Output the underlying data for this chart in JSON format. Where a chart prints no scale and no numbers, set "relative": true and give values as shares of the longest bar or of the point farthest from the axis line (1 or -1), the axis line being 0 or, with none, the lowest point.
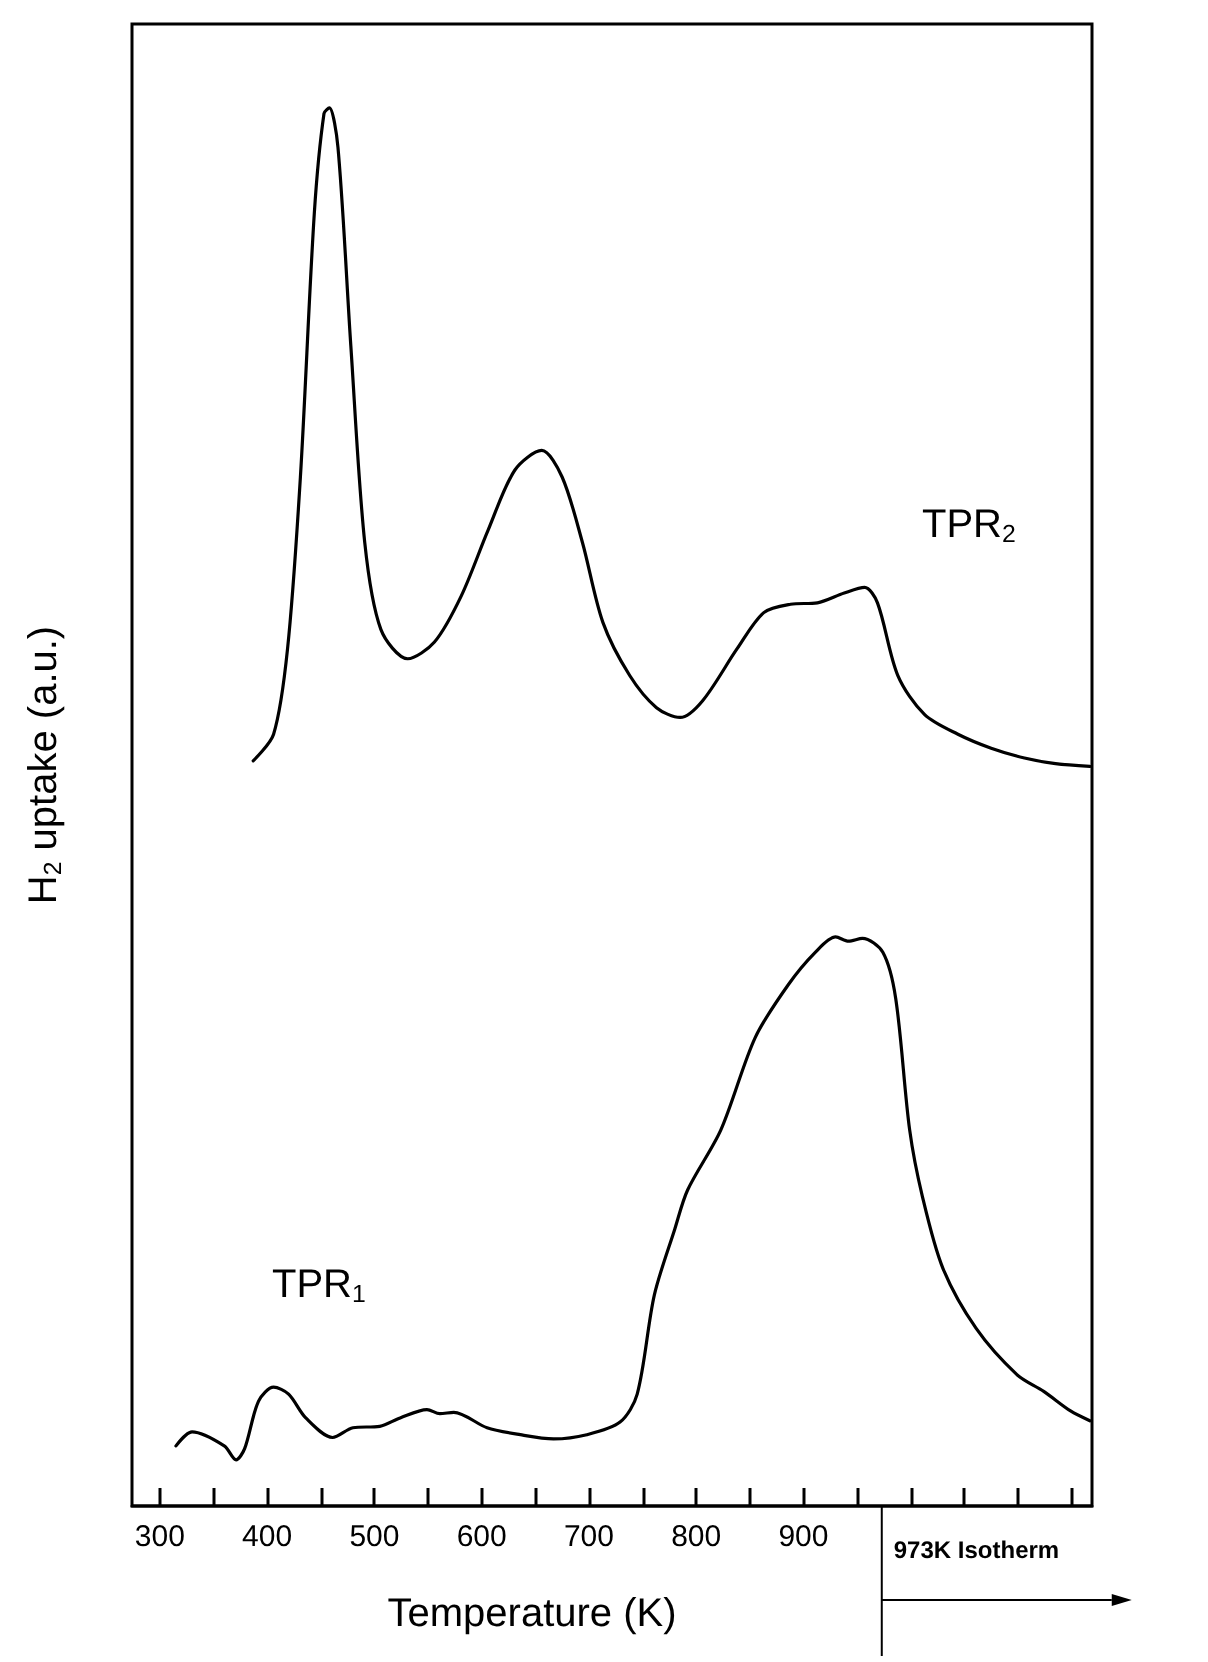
{
  "chart_data": {
    "type": "line",
    "xlabel": "Temperature (K)",
    "ylabel": "H$_{2}$ uptake (a.u.)",
    "relative": true,
    "xlim": [
      274,
      1169
    ],
    "xticks": [
      300,
      {
        "value": 350,
        "label": null
      },
      400,
      {
        "value": 450,
        "label": null
      },
      500,
      {
        "value": 550,
        "label": null
      },
      600,
      {
        "value": 650,
        "label": null
      },
      700,
      {
        "value": 750,
        "label": null
      },
      800,
      {
        "value": 850,
        "label": null
      },
      900,
      {
        "value": 950,
        "label": null
      },
      {
        "value": 1000,
        "label": null
      },
      {
        "value": 1050,
        "label": null
      },
      {
        "value": 1100,
        "label": null
      },
      {
        "value": 1150,
        "label": null
      }
    ],
    "grid": false,
    "legend": false,
    "marker": "none",
    "line_style": "solid",
    "ref_lines": [
      {
        "axis": "x",
        "value": 973,
        "label": "973K Isotherm"
      }
    ],
    "series": [
      {
        "name": "TPR$_{2}$",
        "color": "#000000",
        "x": [
          387,
          406,
          419,
          431,
          444,
          453,
          458,
          466,
          478,
          491,
          506,
          531,
          556,
          581,
          606,
          631,
          656,
          675,
          694,
          713,
          738,
          763,
          785,
          806,
          838,
          863,
          888,
          913,
          938,
          957,
          969,
          988,
          1013,
          1044,
          1075,
          1106,
          1135,
          1167
        ],
        "values": [
          0.533,
          0.552,
          0.613,
          0.736,
          0.925,
          0.996,
          1.0,
          0.972,
          0.83,
          0.689,
          0.627,
          0.606,
          0.618,
          0.651,
          0.698,
          0.741,
          0.755,
          0.736,
          0.689,
          0.632,
          0.594,
          0.571,
          0.564,
          0.576,
          0.613,
          0.639,
          0.645,
          0.646,
          0.653,
          0.657,
          0.646,
          0.594,
          0.566,
          0.552,
          0.542,
          0.535,
          0.531,
          0.529
        ]
      },
      {
        "name": "TPR$_{1}$",
        "color": "#000000",
        "x": [
          315,
          330,
          360,
          371,
          379,
          392,
          406,
          420,
          436,
          461,
          480,
          505,
          524,
          549,
          561,
          574,
          605,
          636,
          667,
          698,
          729,
          745,
          761,
          780,
          792,
          823,
          855,
          886,
          911,
          930,
          942,
          955,
          974,
          986,
          999,
          1011,
          1030,
          1061,
          1099,
          1124,
          1149,
          1167
        ],
        "values": [
          0.043,
          0.053,
          0.043,
          0.033,
          0.041,
          0.075,
          0.085,
          0.08,
          0.063,
          0.049,
          0.056,
          0.057,
          0.063,
          0.069,
          0.066,
          0.067,
          0.056,
          0.051,
          0.048,
          0.051,
          0.06,
          0.08,
          0.151,
          0.198,
          0.226,
          0.269,
          0.335,
          0.373,
          0.396,
          0.407,
          0.404,
          0.406,
          0.396,
          0.363,
          0.269,
          0.221,
          0.17,
          0.127,
          0.094,
          0.082,
          0.068,
          0.061
        ]
      }
    ]
  }
}
